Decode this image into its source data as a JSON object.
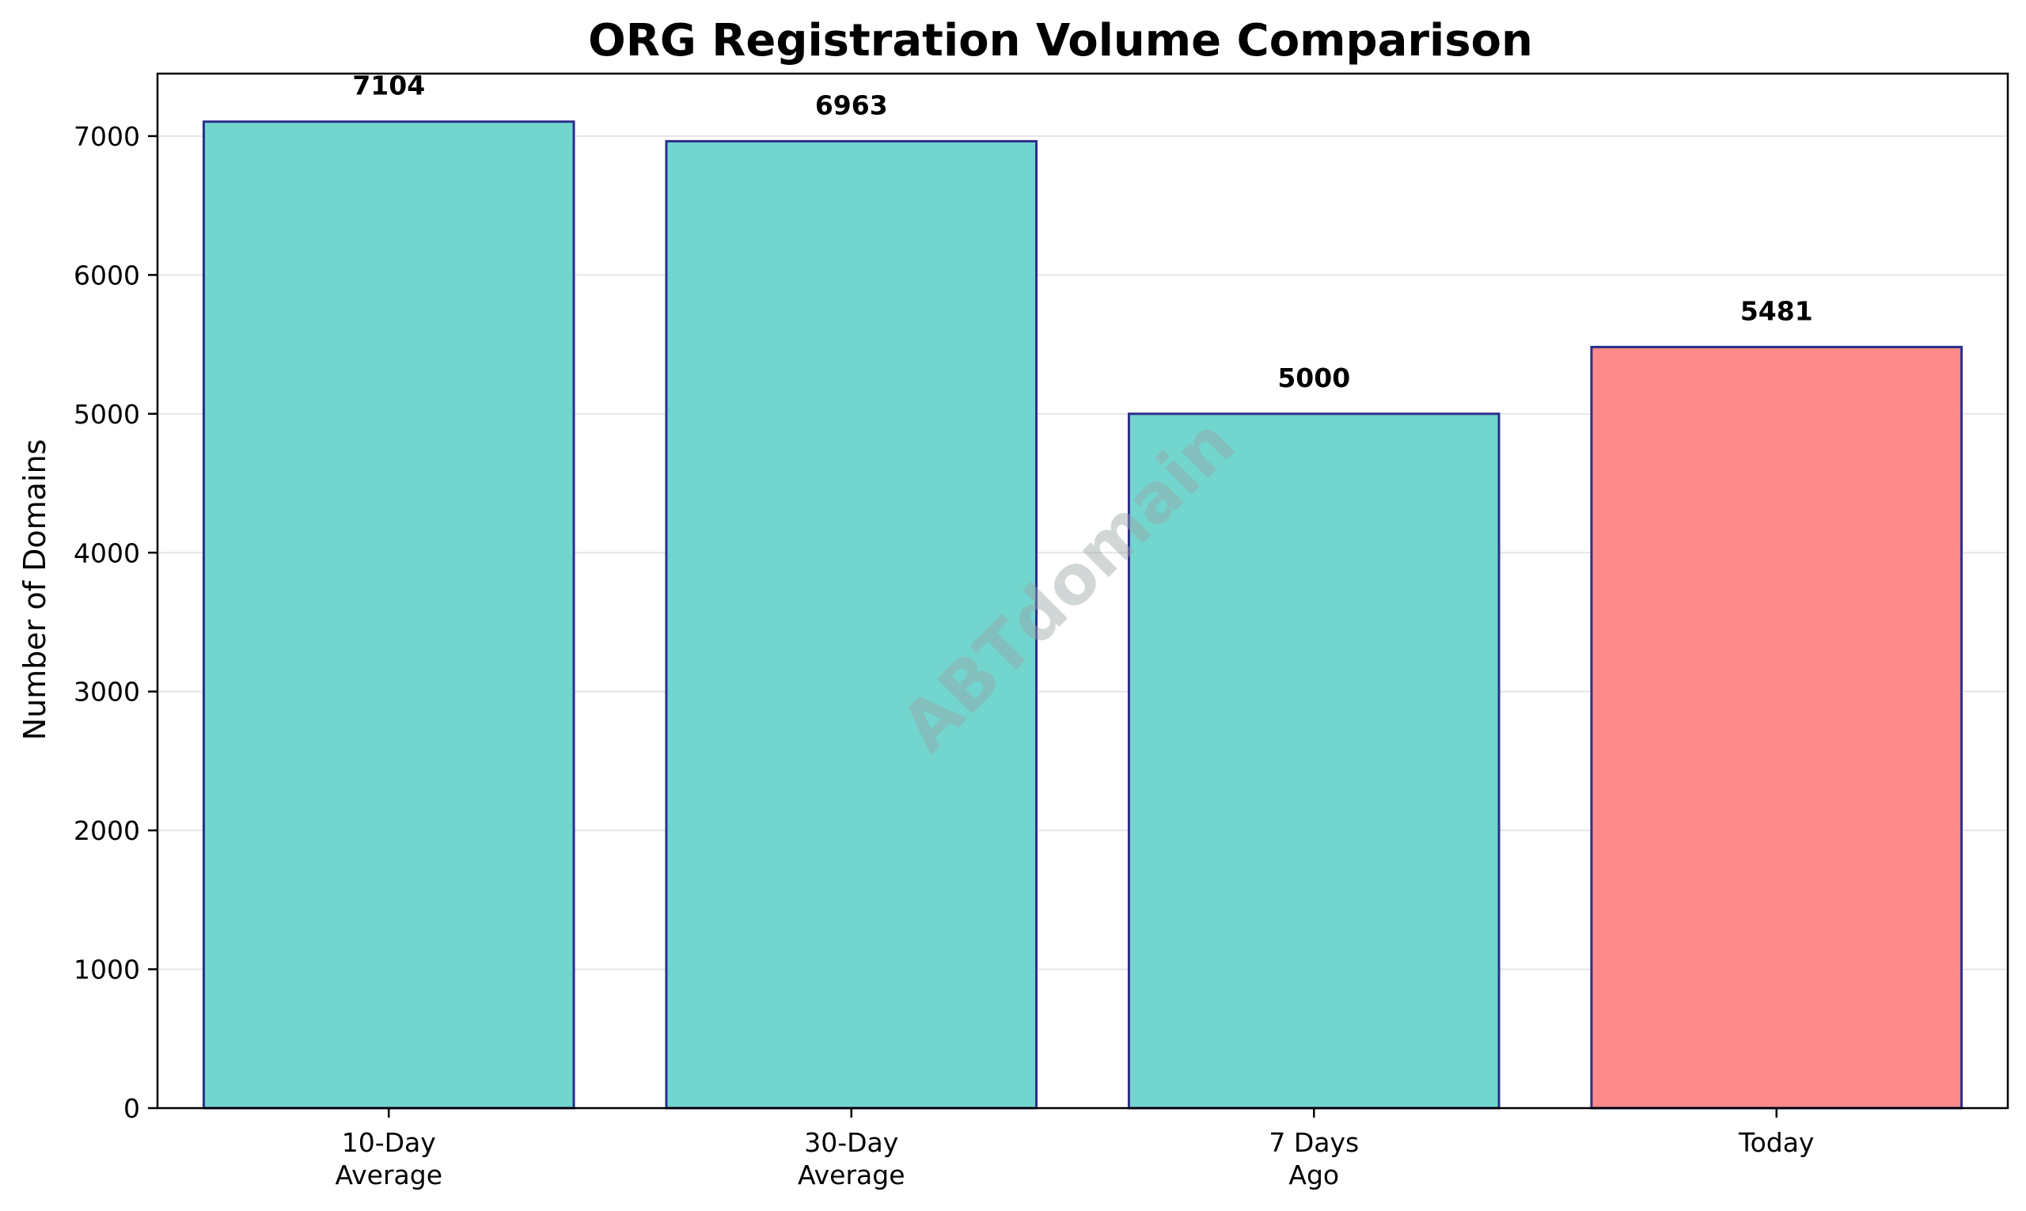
{
  "chart_data": {
    "type": "bar",
    "title": "ORG Registration Volume Comparison",
    "xlabel": "",
    "ylabel": "Number of Domains",
    "categories": [
      [
        "10-Day",
        "Average"
      ],
      [
        "30-Day",
        "Average"
      ],
      [
        "7 Days",
        "Ago"
      ],
      [
        "Today"
      ]
    ],
    "values": [
      7104,
      6963,
      5000,
      5481
    ],
    "value_labels": [
      "7104",
      "6963",
      "5000",
      "5481"
    ],
    "ylim": [
      0,
      7450
    ],
    "yticks": [
      0,
      1000,
      2000,
      3000,
      4000,
      5000,
      6000,
      7000
    ],
    "ytick_labels": [
      "0",
      "1000",
      "2000",
      "3000",
      "4000",
      "5000",
      "6000",
      "7000"
    ],
    "grid": "horizontal",
    "legend": "none",
    "colors": {
      "bars": [
        "#72d6cf",
        "#72d6cf",
        "#72d6cf",
        "#ff8a8a"
      ],
      "bar_edge": "#2b2f8a",
      "grid": "#e6e6e6",
      "axis": "#000000"
    },
    "watermark": "ABTdomain"
  }
}
